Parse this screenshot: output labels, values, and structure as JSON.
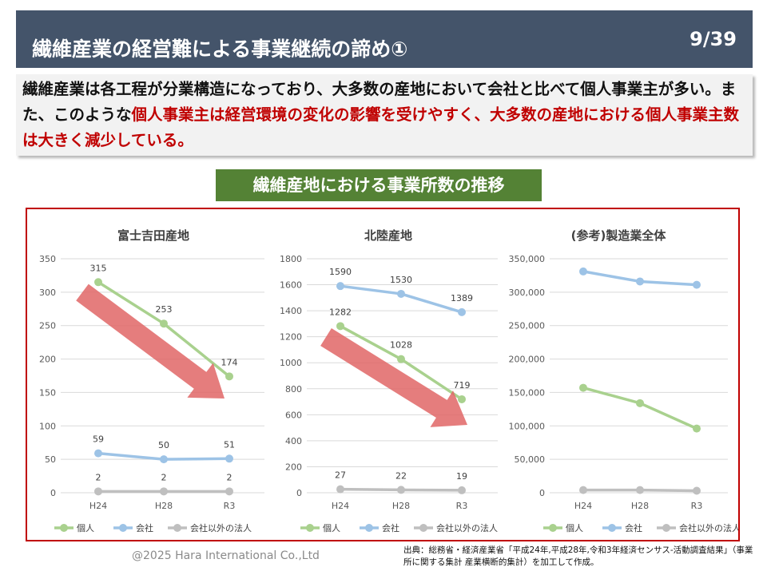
{
  "header": {
    "title": "繊維産業の経営難による事業継続の諦め①",
    "page": "9/39"
  },
  "summary": {
    "part1": "繊維産業は各工程が分業構造になっており、大多数の産地において会社と比べて個人事業主が多い。また、このような",
    "highlight": "個人事業主は経営環境の変化の影響を受けやすく、大多数の産地における個人事業主数は大きく減少している。"
  },
  "section_title": "繊維産地における事業所数の推移",
  "legend": {
    "kojin": "個人",
    "kaisha": "会社",
    "hojin": "会社以外の法人"
  },
  "colors": {
    "kojin": "#a9d18e",
    "kaisha": "#9dc3e6",
    "hojin": "#bfbfbf",
    "arrow": "#e06666"
  },
  "chart_data": [
    {
      "type": "line",
      "title": "富士吉田産地",
      "categories": [
        "H24",
        "H28",
        "R3"
      ],
      "ylim": [
        0,
        350
      ],
      "yticks": [
        "0",
        "50",
        "100",
        "150",
        "200",
        "250",
        "300",
        "350"
      ],
      "series": [
        {
          "name": "個人",
          "values": [
            315,
            253,
            174
          ],
          "labels": [
            "315",
            "253",
            "174"
          ]
        },
        {
          "name": "会社",
          "values": [
            59,
            50,
            51
          ],
          "labels": [
            "59",
            "50",
            "51"
          ]
        },
        {
          "name": "会社以外の法人",
          "values": [
            2,
            2,
            2
          ],
          "labels": [
            "2",
            "2",
            "2"
          ]
        }
      ]
    },
    {
      "type": "line",
      "title": "北陸産地",
      "categories": [
        "H24",
        "H28",
        "R3"
      ],
      "ylim": [
        0,
        1800
      ],
      "yticks": [
        "0",
        "200",
        "400",
        "600",
        "800",
        "1000",
        "1200",
        "1400",
        "1600",
        "1800"
      ],
      "series": [
        {
          "name": "個人",
          "values": [
            1282,
            1028,
            719
          ],
          "labels": [
            "1282",
            "1028",
            "719"
          ]
        },
        {
          "name": "会社",
          "values": [
            1590,
            1530,
            1389
          ],
          "labels": [
            "1590",
            "1530",
            "1389"
          ]
        },
        {
          "name": "会社以外の法人",
          "values": [
            27,
            22,
            19
          ],
          "labels": [
            "27",
            "22",
            "19"
          ]
        }
      ]
    },
    {
      "type": "line",
      "title": "(参考)製造業全体",
      "categories": [
        "H24",
        "H28",
        "R3"
      ],
      "ylim": [
        0,
        350000
      ],
      "yticks": [
        "0",
        "50,000",
        "100,000",
        "150,000",
        "200,000",
        "250,000",
        "300,000",
        "350,000"
      ],
      "series": [
        {
          "name": "個人",
          "values": [
            157000,
            134000,
            96000
          ],
          "labels": []
        },
        {
          "name": "会社",
          "values": [
            331000,
            316000,
            311000
          ],
          "labels": []
        },
        {
          "name": "会社以外の法人",
          "values": [
            4000,
            4000,
            3000
          ],
          "labels": []
        }
      ]
    }
  ],
  "footer": {
    "copyright": "@2025 Hara International Co.,Ltd",
    "source": "出典：総務省・経済産業省「平成24年,平成28年,令和3年経済センサス-活動調査結果」（事業所に関する集計 産業横断的集計）を加工して作成。"
  }
}
